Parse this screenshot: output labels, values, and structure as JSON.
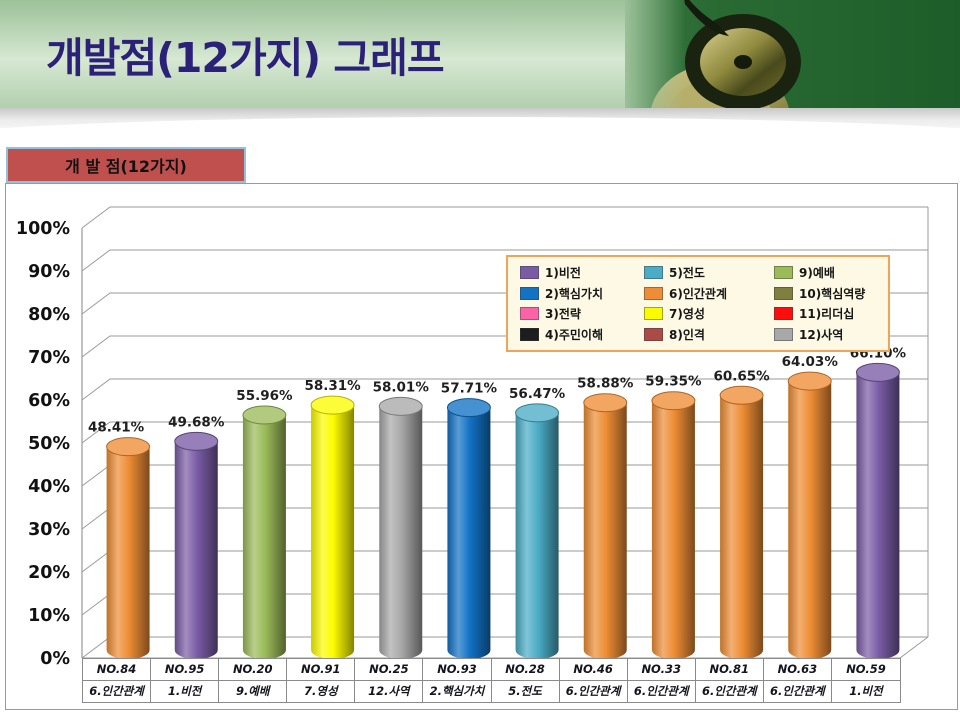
{
  "slide": {
    "title": "개발점(12가지) 그래프"
  },
  "chart": {
    "box_title": "개 발 점(12가지)"
  },
  "chart_data": {
    "type": "bar",
    "subtype": "3d-cylinder",
    "title": "개 발 점(12가지)",
    "ylim": [
      0,
      100
    ],
    "y_tick_step": 10,
    "y_tick_labels": [
      "0%",
      "10%",
      "20%",
      "30%",
      "40%",
      "50%",
      "60%",
      "70%",
      "80%",
      "90%",
      "100%"
    ],
    "grid": true,
    "legend_position": "top-right-inside",
    "categories": [
      {
        "no": "NO.84",
        "name": "6.인간관계"
      },
      {
        "no": "NO.95",
        "name": "1.비전"
      },
      {
        "no": "NO.20",
        "name": "9.예배"
      },
      {
        "no": "NO.91",
        "name": "7.영성"
      },
      {
        "no": "NO.25",
        "name": "12.사역"
      },
      {
        "no": "NO.93",
        "name": "2.핵심가치"
      },
      {
        "no": "NO.28",
        "name": "5.전도"
      },
      {
        "no": "NO.46",
        "name": "6.인간관계"
      },
      {
        "no": "NO.33",
        "name": "6.인간관계"
      },
      {
        "no": "NO.81",
        "name": "6.인간관계"
      },
      {
        "no": "NO.63",
        "name": "6.인간관계"
      },
      {
        "no": "NO.59",
        "name": "1.비전"
      }
    ],
    "values": [
      48.41,
      49.68,
      55.96,
      58.31,
      58.01,
      57.71,
      56.47,
      58.88,
      59.35,
      60.65,
      64.03,
      66.1
    ],
    "value_labels": [
      "48.41%",
      "49.68%",
      "55.96%",
      "58.31%",
      "58.01%",
      "57.71%",
      "56.47%",
      "58.88%",
      "59.35%",
      "60.65%",
      "64.03%",
      "66.10%"
    ],
    "legend": {
      "items": [
        {
          "label": "1)비전",
          "color": "#7a5ca5"
        },
        {
          "label": "2)핵심가치",
          "color": "#1272c4"
        },
        {
          "label": "3)전략",
          "color": "#fa64a6"
        },
        {
          "label": "4)주민이해",
          "color": "#1d1d1d"
        },
        {
          "label": "5)전도",
          "color": "#4bacc6"
        },
        {
          "label": "6)인간관계",
          "color": "#ee8d35"
        },
        {
          "label": "7)영성",
          "color": "#fbfb00"
        },
        {
          "label": "8)인격",
          "color": "#ac4a45"
        },
        {
          "label": "9)예배",
          "color": "#9bbb59"
        },
        {
          "label": "10)핵심역량",
          "color": "#7f7f3e"
        },
        {
          "label": "11)리더십",
          "color": "#fd0d0d"
        },
        {
          "label": "12)사역",
          "color": "#a8a8a8"
        }
      ]
    },
    "colors": {
      "slide_title": "#2b2178",
      "title_box_bg": "#c0504d",
      "title_box_border": "#8fc3dc",
      "legend_bg": "#fdf9e4",
      "legend_border": "#eda55c",
      "gridline": "#9a9a9a",
      "header_green": "#b9d4b5",
      "photo_green": "#1f5e2a"
    }
  }
}
